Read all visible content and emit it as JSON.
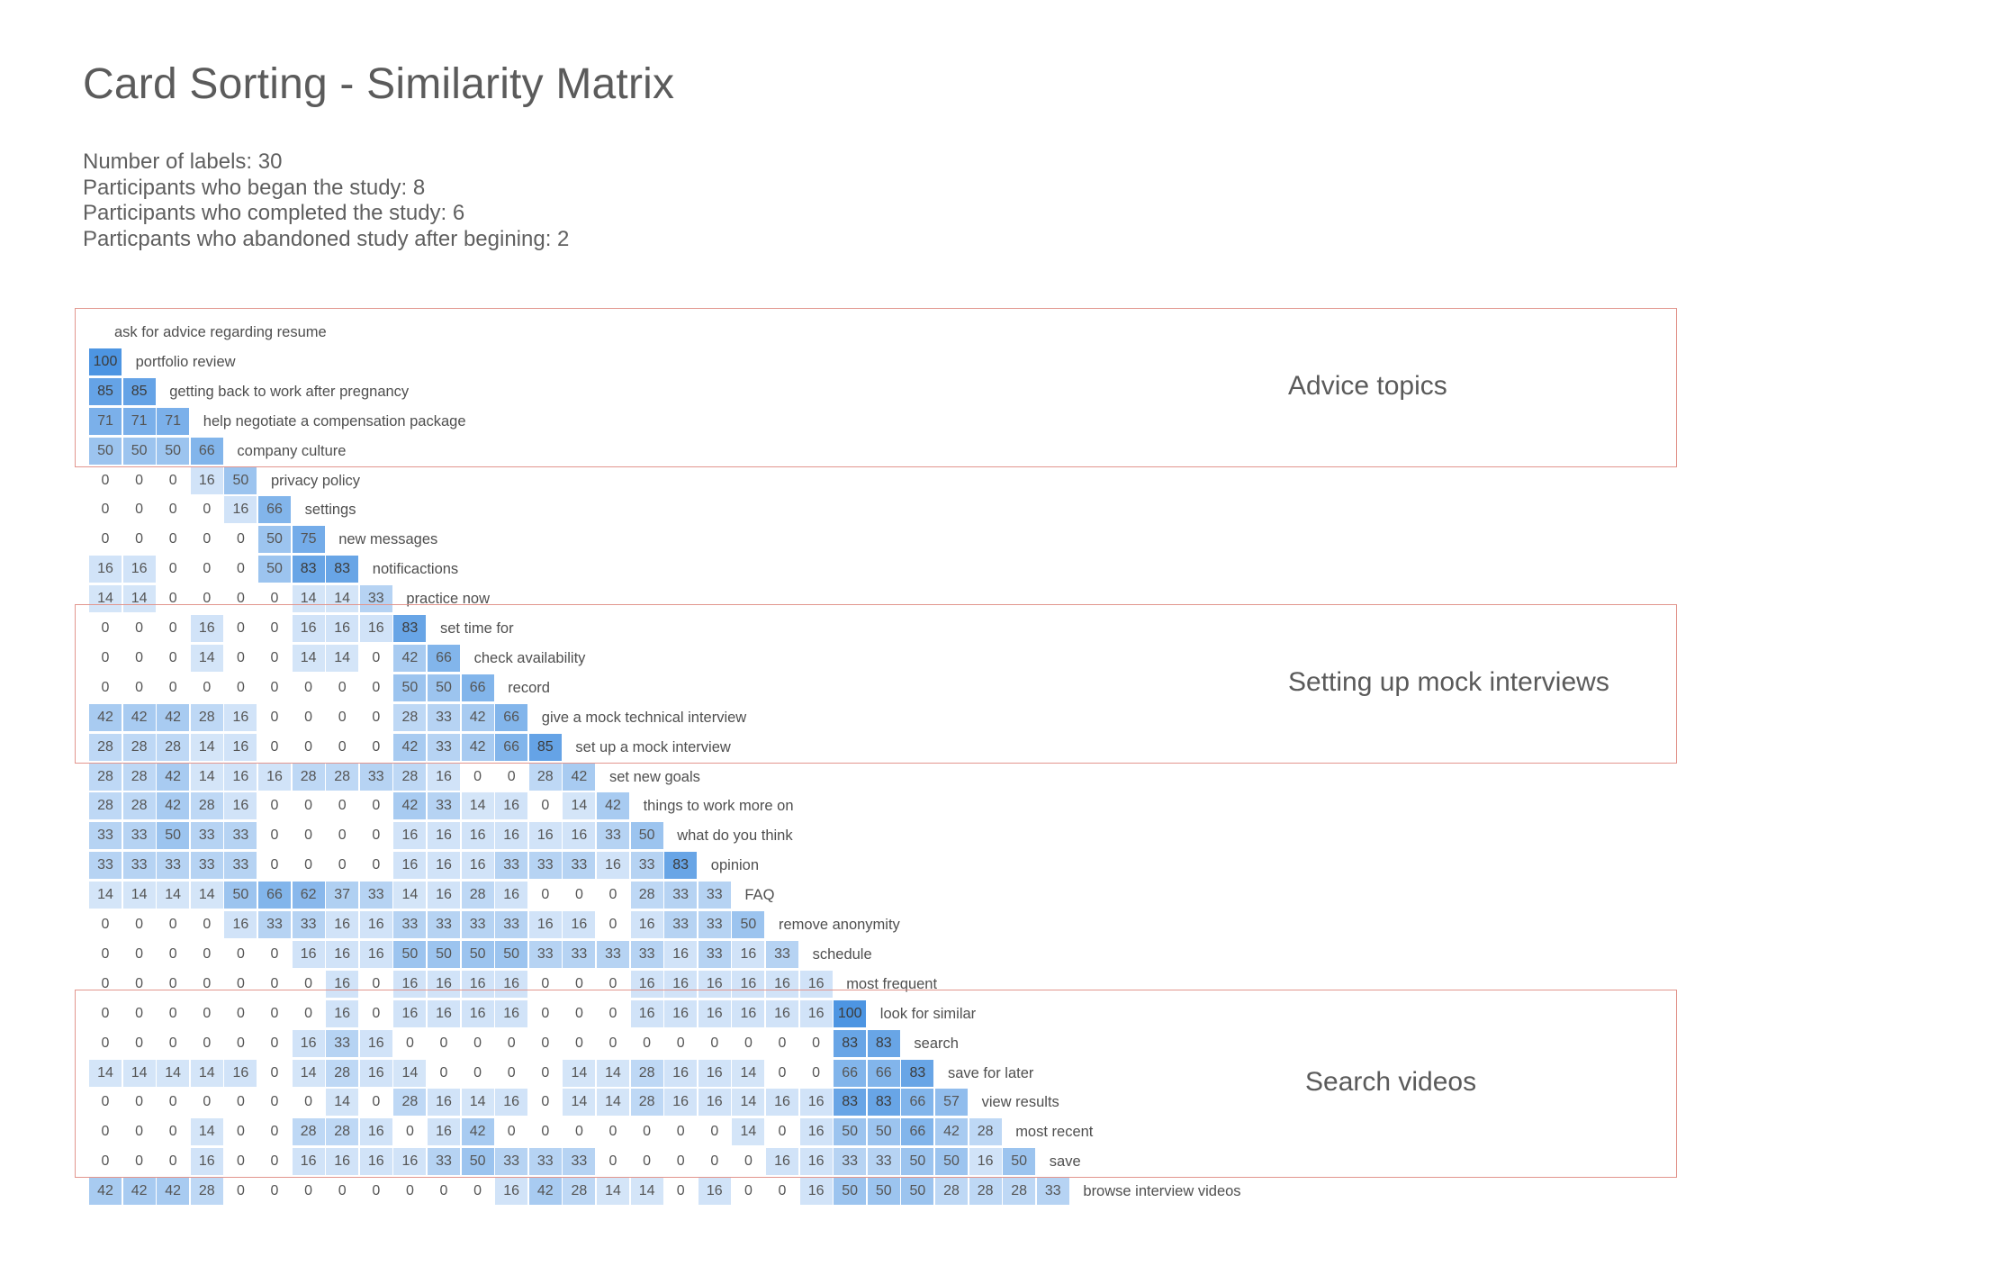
{
  "title": "Card Sorting - Similarity Matrix",
  "stats": [
    "Number of labels: 30",
    "Participants who began the study: 8",
    "Participants who completed the study: 6",
    "Particpants who abandoned study after begining: 2"
  ],
  "colors": {
    "cell_high": "#4d95e2",
    "cell_low": "#eaf2fc",
    "group_border": "#e2968e"
  },
  "chart_data": {
    "type": "heatmap",
    "labels": [
      "ask for advice regarding resume",
      "portfolio review",
      "getting back to work after pregnancy",
      "help negotiate a compensation package",
      "company culture",
      "privacy policy",
      "settings",
      "new messages",
      "notificactions",
      "practice now",
      "set time for",
      "check availability",
      "record",
      "give a mock technical interview",
      "set up a mock interview",
      "set new goals",
      "things to work more on",
      "what do you think",
      "opinion",
      "FAQ",
      "remove anonymity",
      "schedule",
      "most frequent",
      "look for similar",
      "search",
      "save for later",
      "view results",
      "most recent",
      "save",
      "browse interview videos"
    ],
    "matrix": [
      [],
      [
        100
      ],
      [
        85,
        85
      ],
      [
        71,
        71,
        71
      ],
      [
        50,
        50,
        50,
        66
      ],
      [
        0,
        0,
        0,
        16,
        50
      ],
      [
        0,
        0,
        0,
        0,
        16,
        66
      ],
      [
        0,
        0,
        0,
        0,
        0,
        50,
        75
      ],
      [
        16,
        16,
        0,
        0,
        0,
        50,
        83,
        83
      ],
      [
        14,
        14,
        0,
        0,
        0,
        0,
        14,
        14,
        33
      ],
      [
        0,
        0,
        0,
        16,
        0,
        0,
        16,
        16,
        16,
        83
      ],
      [
        0,
        0,
        0,
        14,
        0,
        0,
        14,
        14,
        0,
        42,
        66
      ],
      [
        0,
        0,
        0,
        0,
        0,
        0,
        0,
        0,
        0,
        50,
        50,
        66
      ],
      [
        42,
        42,
        42,
        28,
        16,
        0,
        0,
        0,
        0,
        28,
        33,
        42,
        66
      ],
      [
        28,
        28,
        28,
        14,
        16,
        0,
        0,
        0,
        0,
        42,
        33,
        42,
        66,
        85
      ],
      [
        28,
        28,
        42,
        14,
        16,
        16,
        28,
        28,
        33,
        28,
        16,
        0,
        0,
        28,
        42
      ],
      [
        28,
        28,
        42,
        28,
        16,
        0,
        0,
        0,
        0,
        42,
        33,
        14,
        16,
        0,
        14,
        42
      ],
      [
        33,
        33,
        50,
        33,
        33,
        0,
        0,
        0,
        0,
        16,
        16,
        16,
        16,
        16,
        16,
        33,
        50
      ],
      [
        33,
        33,
        33,
        33,
        33,
        0,
        0,
        0,
        0,
        16,
        16,
        16,
        33,
        33,
        33,
        16,
        33,
        83
      ],
      [
        14,
        14,
        14,
        14,
        50,
        66,
        62,
        37,
        33,
        14,
        16,
        28,
        16,
        0,
        0,
        0,
        28,
        33,
        33
      ],
      [
        0,
        0,
        0,
        0,
        16,
        33,
        33,
        16,
        16,
        33,
        33,
        33,
        33,
        16,
        16,
        0,
        16,
        33,
        33,
        50
      ],
      [
        0,
        0,
        0,
        0,
        0,
        0,
        16,
        16,
        16,
        50,
        50,
        50,
        50,
        33,
        33,
        33,
        33,
        16,
        33,
        16,
        33
      ],
      [
        0,
        0,
        0,
        0,
        0,
        0,
        0,
        16,
        0,
        16,
        16,
        16,
        16,
        0,
        0,
        0,
        16,
        16,
        16,
        16,
        16,
        16
      ],
      [
        0,
        0,
        0,
        0,
        0,
        0,
        0,
        16,
        0,
        16,
        16,
        16,
        16,
        0,
        0,
        0,
        16,
        16,
        16,
        16,
        16,
        16,
        100
      ],
      [
        0,
        0,
        0,
        0,
        0,
        0,
        16,
        33,
        16,
        0,
        0,
        0,
        0,
        0,
        0,
        0,
        0,
        0,
        0,
        0,
        0,
        0,
        83,
        83
      ],
      [
        14,
        14,
        14,
        14,
        16,
        0,
        14,
        28,
        16,
        14,
        0,
        0,
        0,
        0,
        14,
        14,
        28,
        16,
        16,
        14,
        0,
        0,
        66,
        66,
        83
      ],
      [
        0,
        0,
        0,
        0,
        0,
        0,
        0,
        14,
        0,
        28,
        16,
        14,
        16,
        0,
        14,
        14,
        28,
        16,
        16,
        14,
        16,
        16,
        83,
        83,
        66,
        57
      ],
      [
        0,
        0,
        0,
        14,
        0,
        0,
        28,
        28,
        16,
        0,
        16,
        42,
        0,
        0,
        0,
        0,
        0,
        0,
        0,
        14,
        0,
        16,
        50,
        50,
        66,
        42,
        28
      ],
      [
        0,
        0,
        0,
        16,
        0,
        0,
        16,
        16,
        16,
        16,
        33,
        50,
        33,
        33,
        33,
        0,
        0,
        0,
        0,
        0,
        16,
        16,
        33,
        33,
        50,
        50,
        16,
        50
      ],
      [
        42,
        42,
        42,
        28,
        0,
        0,
        0,
        0,
        0,
        0,
        0,
        0,
        16,
        42,
        28,
        14,
        14,
        0,
        16,
        0,
        0,
        16,
        50,
        50,
        50,
        28,
        28,
        28,
        33
      ]
    ],
    "groups": [
      {
        "label": "Advice topics",
        "rows": [
          0,
          4
        ]
      },
      {
        "label": "Setting up mock interviews",
        "rows": [
          10,
          14
        ]
      },
      {
        "label": "Search videos",
        "rows": [
          23,
          28
        ]
      }
    ],
    "value_range": [
      0,
      100
    ]
  }
}
